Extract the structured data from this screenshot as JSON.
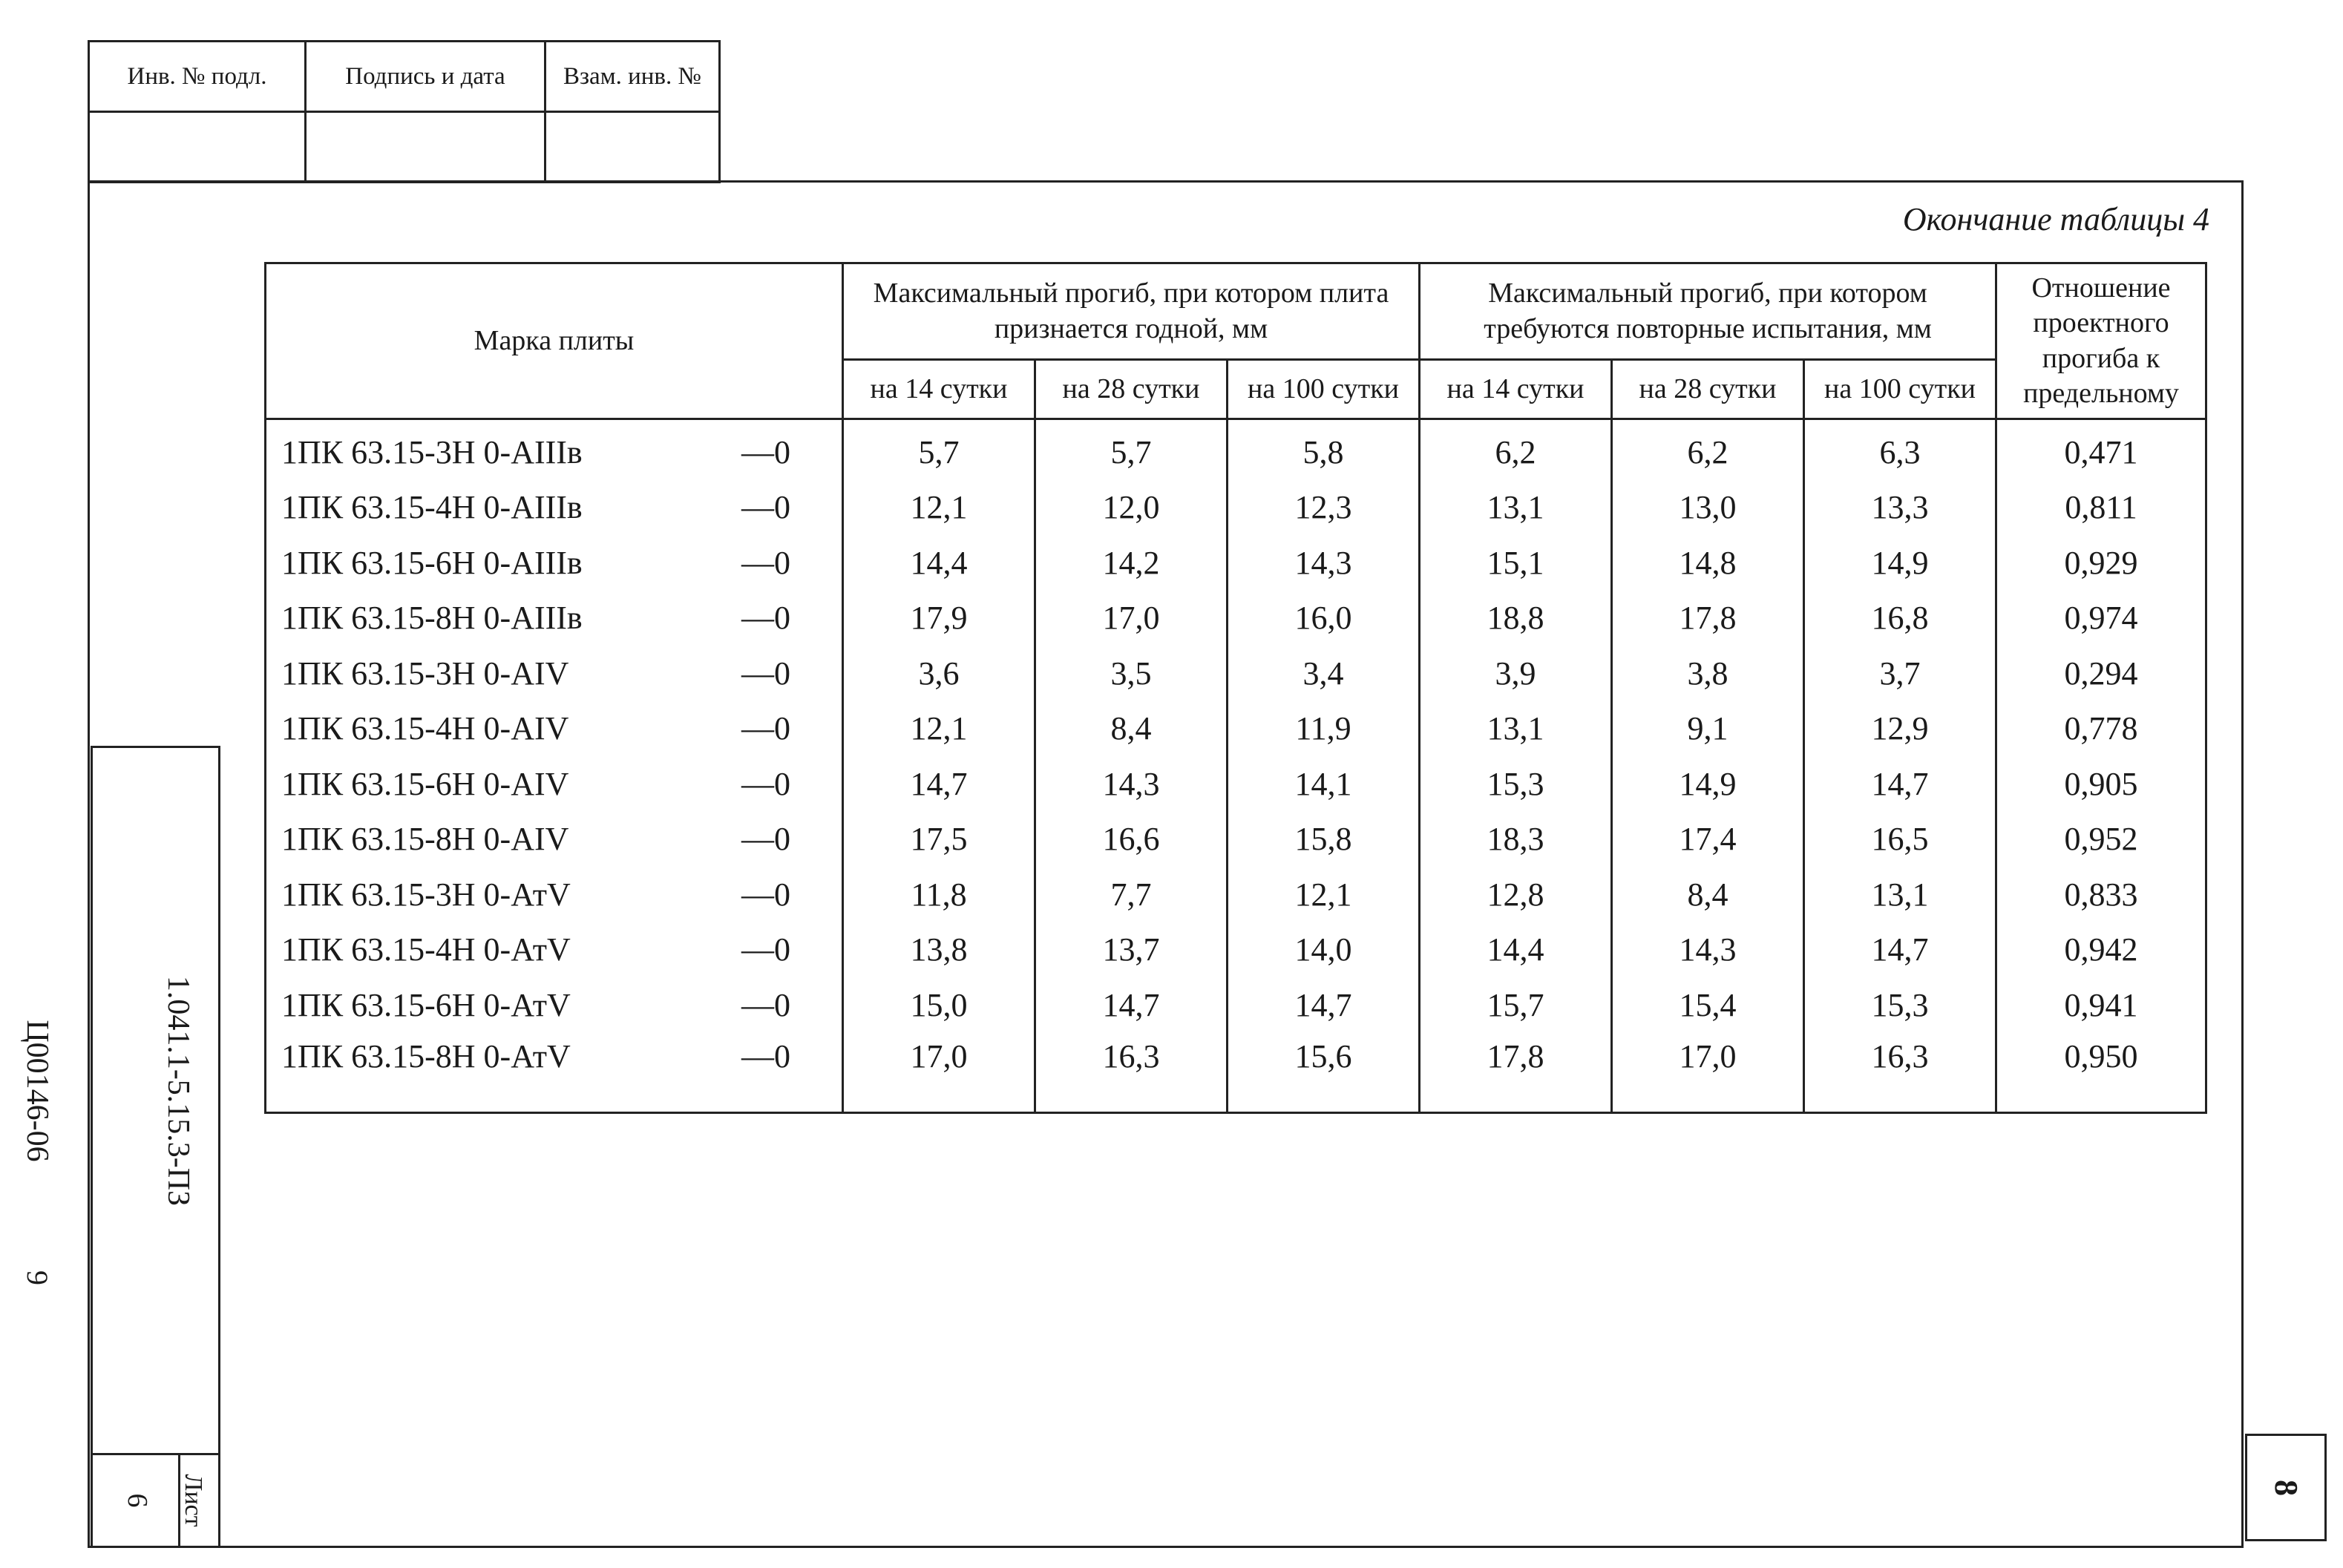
{
  "stamp": {
    "inv_podl": "Инв. № подл.",
    "podpis_data": "Подпись и дата",
    "vzam_inv": "Взам. инв. №"
  },
  "side": {
    "doc_number": "1.041.1-5.15.3-ПЗ",
    "sheet_label": "Лист",
    "sheet_number": "6",
    "archive_number": "Ц00146-06",
    "archive_page": "9"
  },
  "page_number": "8",
  "caption": "Окончание таблицы 4",
  "table": {
    "col_mark": "Марка плиты",
    "group_accept": "Максимальный прогиб, при котором плита признается годной, мм",
    "group_retest": "Максимальный прогиб, при котором требуются повторные испытания, мм",
    "col_ratio": "Отношение проектного прогиба к предельному",
    "sub_14": "на 14 сутки",
    "sub_28": "на 28 сутки",
    "sub_100": "на 100 сутки",
    "rows": [
      {
        "mark": "1ПК 63.15-3Н 0-АIIIв",
        "tol": "—0",
        "a14": "5,7",
        "a28": "5,7",
        "a100": "5,8",
        "r14": "6,2",
        "r28": "6,2",
        "r100": "6,3",
        "ratio": "0,471"
      },
      {
        "mark": "1ПК 63.15-4Н 0-АIIIв",
        "tol": "—0",
        "a14": "12,1",
        "a28": "12,0",
        "a100": "12,3",
        "r14": "13,1",
        "r28": "13,0",
        "r100": "13,3",
        "ratio": "0,811"
      },
      {
        "mark": "1ПК 63.15-6Н 0-АIIIв",
        "tol": "—0",
        "a14": "14,4",
        "a28": "14,2",
        "a100": "14,3",
        "r14": "15,1",
        "r28": "14,8",
        "r100": "14,9",
        "ratio": "0,929"
      },
      {
        "mark": "1ПК 63.15-8Н 0-АIIIв",
        "tol": "—0",
        "a14": "17,9",
        "a28": "17,0",
        "a100": "16,0",
        "r14": "18,8",
        "r28": "17,8",
        "r100": "16,8",
        "ratio": "0,974"
      },
      {
        "mark": "1ПК 63.15-3Н 0-АIV",
        "tol": "—0",
        "a14": "3,6",
        "a28": "3,5",
        "a100": "3,4",
        "r14": "3,9",
        "r28": "3,8",
        "r100": "3,7",
        "ratio": "0,294"
      },
      {
        "mark": "1ПК 63.15-4Н 0-АIV",
        "tol": "—0",
        "a14": "12,1",
        "a28": "8,4",
        "a100": "11,9",
        "r14": "13,1",
        "r28": "9,1",
        "r100": "12,9",
        "ratio": "0,778"
      },
      {
        "mark": "1ПК 63.15-6Н 0-АIV",
        "tol": "—0",
        "a14": "14,7",
        "a28": "14,3",
        "a100": "14,1",
        "r14": "15,3",
        "r28": "14,9",
        "r100": "14,7",
        "ratio": "0,905"
      },
      {
        "mark": "1ПК 63.15-8Н 0-АIV",
        "tol": "—0",
        "a14": "17,5",
        "a28": "16,6",
        "a100": "15,8",
        "r14": "18,3",
        "r28": "17,4",
        "r100": "16,5",
        "ratio": "0,952"
      },
      {
        "mark": "1ПК 63.15-3Н 0-АтV",
        "tol": "—0",
        "a14": "11,8",
        "a28": "7,7",
        "a100": "12,1",
        "r14": "12,8",
        "r28": "8,4",
        "r100": "13,1",
        "ratio": "0,833"
      },
      {
        "mark": "1ПК 63.15-4Н 0-АтV",
        "tol": "—0",
        "a14": "13,8",
        "a28": "13,7",
        "a100": "14,0",
        "r14": "14,4",
        "r28": "14,3",
        "r100": "14,7",
        "ratio": "0,942"
      },
      {
        "mark": "1ПК 63.15-6Н 0-АтV",
        "tol": "—0",
        "a14": "15,0",
        "a28": "14,7",
        "a100": "14,7",
        "r14": "15,7",
        "r28": "15,4",
        "r100": "15,3",
        "ratio": "0,941"
      },
      {
        "mark": "1ПК 63.15-8Н 0-АтV",
        "tol": "—0",
        "a14": "17,0",
        "a28": "16,3",
        "a100": "15,6",
        "r14": "17,8",
        "r28": "17,0",
        "r100": "16,3",
        "ratio": "0,950"
      }
    ]
  }
}
